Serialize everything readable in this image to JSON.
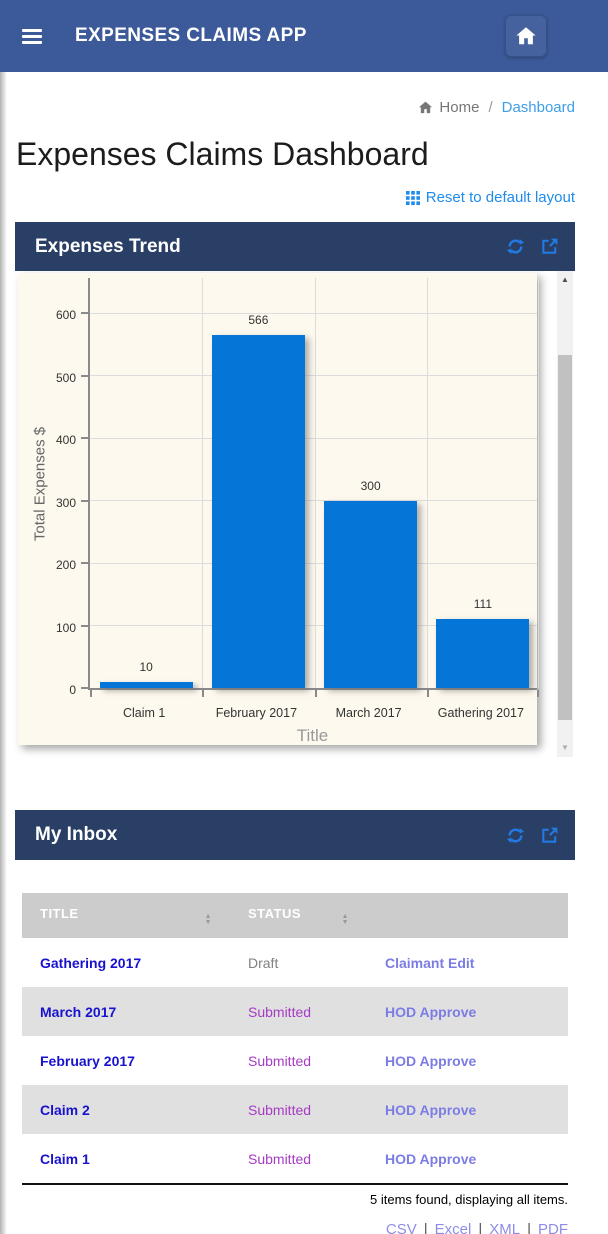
{
  "navbar": {
    "title": "EXPENSES CLAIMS APP"
  },
  "breadcrumb": {
    "home": "Home",
    "separator": "/",
    "current": "Dashboard"
  },
  "page": {
    "title": "Expenses Claims Dashboard",
    "reset_label": "Reset to default layout"
  },
  "panels": {
    "chart": {
      "title": "Expenses Trend"
    },
    "inbox": {
      "title": "My Inbox"
    }
  },
  "icons": {
    "sort_up": "▲",
    "sort_down": "▼",
    "scroll_up": "▲",
    "scroll_down": "▼"
  },
  "chart_data": {
    "type": "bar",
    "categories": [
      "Claim 1",
      "February 2017",
      "March 2017",
      "Gathering 2017"
    ],
    "values": [
      10,
      566,
      300,
      111
    ],
    "title": "",
    "xlabel": "Title",
    "ylabel": "Total Expenses $",
    "ylim": [
      0,
      660
    ],
    "yticks": [
      0,
      100,
      200,
      300,
      400,
      500,
      600
    ],
    "grid": true,
    "legend": "none",
    "bar_color": "#0575d8",
    "plot_background": "#fdf9ee"
  },
  "inbox_table": {
    "columns": [
      "TITLE",
      "STATUS",
      ""
    ],
    "rows": [
      {
        "title": "Gathering 2017",
        "status": "Draft",
        "status_type": "draft",
        "action": "Claimant Edit"
      },
      {
        "title": "March 2017",
        "status": "Submitted",
        "status_type": "submitted",
        "action": "HOD Approve"
      },
      {
        "title": "February 2017",
        "status": "Submitted",
        "status_type": "submitted",
        "action": "HOD Approve"
      },
      {
        "title": "Claim 2",
        "status": "Submitted",
        "status_type": "submitted",
        "action": "HOD Approve"
      },
      {
        "title": "Claim 1",
        "status": "Submitted",
        "status_type": "submitted",
        "action": "HOD Approve"
      }
    ],
    "summary": "5 items found, displaying all items.",
    "separator": "|",
    "export_links": [
      "CSV",
      "Excel",
      "XML",
      "PDF"
    ]
  },
  "colors": {
    "navbar": "#3c5a99",
    "panel_header": "#2a3f66",
    "panel_icon_blue": "#2379e2",
    "breadcrumb_link": "#3f9ee8",
    "reset_link": "#1f8ceb",
    "bar": "#0575d8",
    "chart_background": "#fdf9ee",
    "table_header_bg": "#cccccc",
    "row_alt_bg": "#e0e0e0",
    "claim_link": "#1812cf",
    "status_draft": "#808080",
    "status_submitted": "#a63bc4",
    "action_link": "#7b7ce4",
    "export_link": "#8d8de8"
  }
}
